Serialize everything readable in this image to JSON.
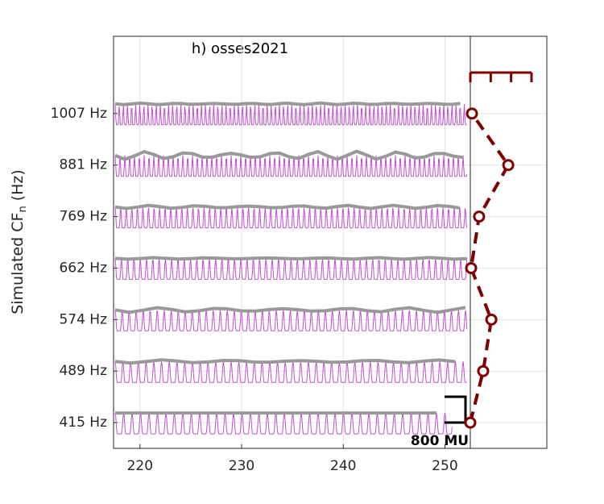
{
  "chart_data": [
    {
      "type": "line",
      "title": "h) osses2021",
      "ylabel_parts": [
        "Simulated CF",
        "n",
        "(Hz)"
      ],
      "xlim": [
        217.4,
        252.5
      ],
      "xticks": [
        220,
        230,
        240,
        250
      ],
      "ylim": [
        -0.5,
        7.5
      ],
      "yticks": [
        {
          "value": 0,
          "label": "415 Hz"
        },
        {
          "value": 1,
          "label": "489 Hz"
        },
        {
          "value": 2,
          "label": "574 Hz"
        },
        {
          "value": 3,
          "label": "662 Hz"
        },
        {
          "value": 4,
          "label": "769 Hz"
        },
        {
          "value": 5,
          "label": "881 Hz"
        },
        {
          "value": 6,
          "label": "1007 Hz"
        }
      ],
      "grid": true,
      "annotation": "800 MU"
    },
    {
      "type": "line",
      "color": "#7f0000",
      "y": [
        0,
        1,
        2,
        3,
        4,
        5,
        6
      ],
      "values": [
        0,
        0.63,
        1.03,
        0.04,
        0.43,
        1.86,
        0.08
      ],
      "xlim": [
        0,
        3.75
      ],
      "xticks": [
        0,
        1,
        2,
        3
      ],
      "ylim": [
        -0.5,
        7.5
      ]
    }
  ]
}
